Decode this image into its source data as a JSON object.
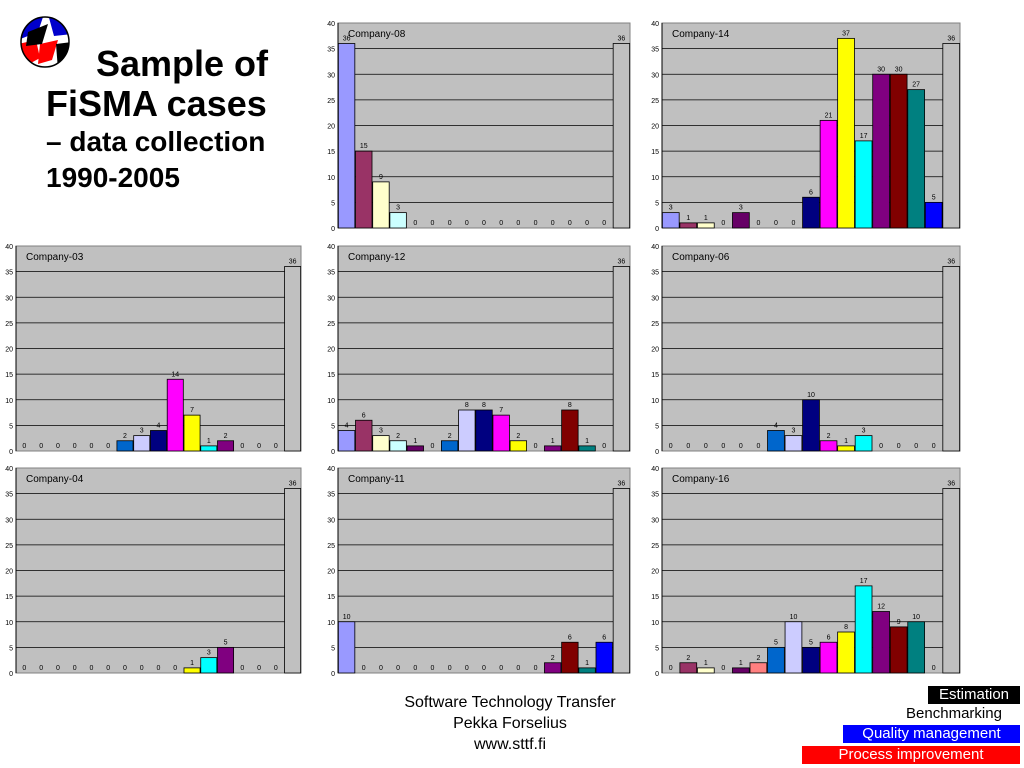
{
  "title": {
    "line1": "Sample of",
    "line2": "FiSMA cases",
    "line3": "– data collection",
    "line4": "1990-2005"
  },
  "footer": {
    "line1": "Software Technology Transfer",
    "line2": "Pekka Forselius",
    "line3": "www.sttf.fi"
  },
  "badges": {
    "estimation": "Estimation",
    "benchmarking": "Benchmarking",
    "quality": "Quality management",
    "process": "Process improvement"
  },
  "colors": {
    "plot_bg": "#c0c0c0",
    "gridline": "#000000",
    "bar_palette": [
      "#9999ff",
      "#993366",
      "#ffffcc",
      "#ccffff",
      "#660066",
      "#ff8080",
      "#0066cc",
      "#ccccff",
      "#000080",
      "#ff00ff",
      "#ffff00",
      "#00ffff",
      "#800080",
      "#800000",
      "#008080",
      "#0000ff",
      "#c0c0c0"
    ]
  },
  "chart_data": [
    {
      "type": "bar",
      "title": "Company-08",
      "ylim": [
        0,
        40
      ],
      "yticks": [
        0,
        5,
        10,
        15,
        20,
        25,
        30,
        35,
        40
      ],
      "grid": true,
      "series": [
        {
          "values": [
            36,
            15,
            9,
            3,
            0,
            0,
            0,
            0,
            0,
            0,
            0,
            0,
            0,
            0,
            0,
            0,
            36
          ],
          "labels": [
            "36",
            "15",
            "9",
            "3",
            "0",
            "0",
            "0",
            "0",
            "0",
            "0",
            "0",
            "0",
            "0",
            "0",
            "0",
            "0",
            "36"
          ]
        }
      ]
    },
    {
      "type": "bar",
      "title": "Company-14",
      "ylim": [
        0,
        40
      ],
      "yticks": [
        0,
        5,
        10,
        15,
        20,
        25,
        30,
        35,
        40
      ],
      "grid": true,
      "series": [
        {
          "values": [
            3,
            1,
            1,
            0,
            3,
            0,
            0,
            0,
            6,
            21,
            37,
            17,
            30,
            30,
            27,
            5,
            36
          ],
          "labels": [
            "3",
            "1",
            "1",
            "0",
            "3",
            "0",
            "0",
            "0",
            "6",
            "21",
            "37",
            "17",
            "30",
            "30",
            "27",
            "5",
            "36"
          ]
        }
      ]
    },
    {
      "type": "bar",
      "title": "Company-03",
      "ylim": [
        0,
        40
      ],
      "yticks": [
        0,
        5,
        10,
        15,
        20,
        25,
        30,
        35,
        40
      ],
      "grid": true,
      "series": [
        {
          "values": [
            0,
            0,
            0,
            0,
            0,
            0,
            2,
            3,
            4,
            14,
            7,
            1,
            2,
            0,
            0,
            0,
            36
          ],
          "labels": [
            "0",
            "0",
            "0",
            "0",
            "0",
            "0",
            "2",
            "3",
            "4",
            "14",
            "7",
            "1",
            "2",
            "0",
            "0",
            "0",
            "36"
          ]
        }
      ]
    },
    {
      "type": "bar",
      "title": "Company-12",
      "ylim": [
        0,
        40
      ],
      "yticks": [
        0,
        5,
        10,
        15,
        20,
        25,
        30,
        35,
        40
      ],
      "grid": true,
      "series": [
        {
          "values": [
            4,
            6,
            3,
            2,
            1,
            0,
            2,
            8,
            8,
            7,
            2,
            0,
            1,
            8,
            1,
            0,
            36
          ],
          "labels": [
            "4",
            "6",
            "3",
            "2",
            "1",
            "0",
            "2",
            "8",
            "8",
            "7",
            "2",
            "0",
            "1",
            "8",
            "1",
            "0",
            "36"
          ]
        }
      ]
    },
    {
      "type": "bar",
      "title": "Company-06",
      "ylim": [
        0,
        40
      ],
      "yticks": [
        0,
        5,
        10,
        15,
        20,
        25,
        30,
        35,
        40
      ],
      "grid": true,
      "series": [
        {
          "values": [
            0,
            0,
            0,
            0,
            0,
            0,
            4,
            3,
            10,
            2,
            1,
            3,
            0,
            0,
            0,
            0,
            36
          ],
          "labels": [
            "0",
            "0",
            "0",
            "0",
            "0",
            "0",
            "4",
            "3",
            "10",
            "2",
            "1",
            "3",
            "0",
            "0",
            "0",
            "0",
            "36"
          ]
        }
      ]
    },
    {
      "type": "bar",
      "title": "Company-04",
      "ylim": [
        0,
        40
      ],
      "yticks": [
        0,
        5,
        10,
        15,
        20,
        25,
        30,
        35,
        40
      ],
      "grid": true,
      "series": [
        {
          "values": [
            0,
            0,
            0,
            0,
            0,
            0,
            0,
            0,
            0,
            0,
            1,
            3,
            5,
            0,
            0,
            0,
            36
          ],
          "labels": [
            "0",
            "0",
            "0",
            "0",
            "0",
            "0",
            "0",
            "0",
            "0",
            "0",
            "1",
            "3",
            "5",
            "0",
            "0",
            "0",
            "36"
          ]
        }
      ]
    },
    {
      "type": "bar",
      "title": "Company-11",
      "ylim": [
        0,
        40
      ],
      "yticks": [
        0,
        5,
        10,
        15,
        20,
        25,
        30,
        35,
        40
      ],
      "grid": true,
      "series": [
        {
          "values": [
            10,
            0,
            0,
            0,
            0,
            0,
            0,
            0,
            0,
            0,
            0,
            0,
            2,
            6,
            1,
            6,
            36
          ],
          "labels": [
            "10",
            "0",
            "0",
            "0",
            "0",
            "0",
            "0",
            "0",
            "0",
            "0",
            "0",
            "0",
            "2",
            "6",
            "1",
            "6",
            "36"
          ]
        }
      ]
    },
    {
      "type": "bar",
      "title": "Company-16",
      "ylim": [
        0,
        40
      ],
      "yticks": [
        0,
        5,
        10,
        15,
        20,
        25,
        30,
        35,
        40
      ],
      "grid": true,
      "series": [
        {
          "values": [
            0,
            2,
            1,
            0,
            1,
            2,
            5,
            10,
            5,
            6,
            8,
            17,
            12,
            9,
            10,
            0,
            36
          ],
          "labels": [
            "0",
            "2",
            "1",
            "0",
            "1",
            "2",
            "5",
            "10",
            "5",
            "6",
            "8",
            "17",
            "12",
            "9",
            "10",
            "0",
            "36"
          ]
        }
      ]
    }
  ]
}
